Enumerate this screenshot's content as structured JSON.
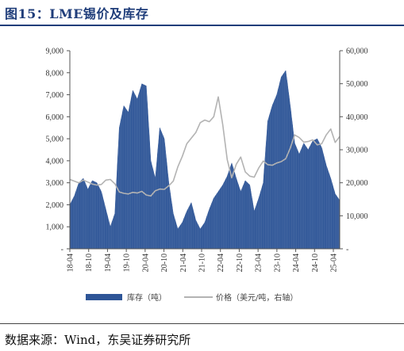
{
  "title": "图15：LME锡价及库存",
  "source": "数据来源：Wind，东吴证券研究所",
  "colors": {
    "bar": "#2e5597",
    "line": "#b3b3b3",
    "title": "#1f3d7a"
  },
  "chart_data": {
    "type": "bar+line",
    "x_ticks": [
      "18-04",
      "18-10",
      "19-04",
      "19-10",
      "20-04",
      "20-10",
      "21-04",
      "21-10",
      "22-04",
      "22-10",
      "23-04",
      "23-10",
      "24-04",
      "24-10",
      "25-04"
    ],
    "y_left": {
      "ticks": [
        "-",
        "1,000",
        "2,000",
        "3,000",
        "4,000",
        "5,000",
        "6,000",
        "7,000",
        "8,000",
        "9,000"
      ],
      "range": [
        0,
        9000
      ]
    },
    "y_right": {
      "ticks": [
        "-",
        "10,000",
        "20,000",
        "30,000",
        "40,000",
        "50,000",
        "60,000"
      ],
      "range": [
        0,
        60000
      ]
    },
    "series": [
      {
        "name": "库存（吨）",
        "type": "area",
        "axis": "left",
        "points": [
          [
            0,
            2000
          ],
          [
            1,
            2400
          ],
          [
            2,
            3000
          ],
          [
            3,
            3200
          ],
          [
            4,
            2700
          ],
          [
            5,
            3100
          ],
          [
            6,
            3000
          ],
          [
            7,
            2600
          ],
          [
            8,
            1800
          ],
          [
            9,
            1000
          ],
          [
            10,
            1600
          ],
          [
            11,
            5500
          ],
          [
            12,
            6500
          ],
          [
            13,
            6200
          ],
          [
            14,
            7200
          ],
          [
            15,
            6800
          ],
          [
            16,
            7500
          ],
          [
            17,
            7400
          ],
          [
            18,
            4000
          ],
          [
            19,
            3200
          ],
          [
            20,
            5500
          ],
          [
            21,
            5000
          ],
          [
            22,
            3000
          ],
          [
            23,
            1600
          ],
          [
            24,
            900
          ],
          [
            25,
            1200
          ],
          [
            26,
            1700
          ],
          [
            27,
            2100
          ],
          [
            28,
            1300
          ],
          [
            29,
            900
          ],
          [
            30,
            1200
          ],
          [
            31,
            1800
          ],
          [
            32,
            2300
          ],
          [
            33,
            2600
          ],
          [
            34,
            2900
          ],
          [
            35,
            3300
          ],
          [
            36,
            3900
          ],
          [
            37,
            3200
          ],
          [
            38,
            2600
          ],
          [
            39,
            3100
          ],
          [
            40,
            2900
          ],
          [
            41,
            1700
          ],
          [
            42,
            2300
          ],
          [
            43,
            3000
          ],
          [
            44,
            5800
          ],
          [
            45,
            6500
          ],
          [
            46,
            7000
          ],
          [
            47,
            7800
          ],
          [
            48,
            8100
          ],
          [
            49,
            6500
          ],
          [
            50,
            4800
          ],
          [
            51,
            4300
          ],
          [
            52,
            4800
          ],
          [
            53,
            4500
          ],
          [
            54,
            4900
          ],
          [
            55,
            5000
          ],
          [
            56,
            4600
          ],
          [
            57,
            3800
          ],
          [
            58,
            3200
          ],
          [
            59,
            2500
          ],
          [
            60,
            2200
          ]
        ]
      },
      {
        "name": "价格（美元/吨，右轴）",
        "type": "line",
        "axis": "right",
        "points": [
          [
            0,
            21000
          ],
          [
            1,
            20500
          ],
          [
            2,
            20000
          ],
          [
            3,
            20800
          ],
          [
            4,
            20200
          ],
          [
            5,
            19600
          ],
          [
            6,
            19300
          ],
          [
            7,
            19500
          ],
          [
            8,
            20800
          ],
          [
            9,
            21000
          ],
          [
            10,
            19700
          ],
          [
            11,
            17200
          ],
          [
            12,
            16800
          ],
          [
            13,
            16600
          ],
          [
            14,
            17100
          ],
          [
            15,
            16900
          ],
          [
            16,
            17400
          ],
          [
            17,
            16300
          ],
          [
            18,
            16000
          ],
          [
            19,
            17600
          ],
          [
            20,
            18100
          ],
          [
            21,
            18000
          ],
          [
            22,
            19100
          ],
          [
            23,
            20500
          ],
          [
            24,
            24800
          ],
          [
            25,
            28000
          ],
          [
            26,
            31800
          ],
          [
            27,
            33500
          ],
          [
            28,
            35200
          ],
          [
            29,
            38200
          ],
          [
            30,
            39000
          ],
          [
            31,
            38500
          ],
          [
            32,
            40000
          ],
          [
            33,
            46000
          ],
          [
            34,
            37500
          ],
          [
            35,
            27000
          ],
          [
            36,
            21500
          ],
          [
            37,
            25600
          ],
          [
            38,
            27800
          ],
          [
            39,
            23300
          ],
          [
            40,
            22000
          ],
          [
            41,
            21700
          ],
          [
            42,
            24500
          ],
          [
            43,
            26600
          ],
          [
            44,
            25500
          ],
          [
            45,
            25300
          ],
          [
            46,
            26000
          ],
          [
            47,
            26400
          ],
          [
            48,
            27300
          ],
          [
            49,
            30500
          ],
          [
            50,
            34500
          ],
          [
            51,
            33700
          ],
          [
            52,
            32300
          ],
          [
            53,
            32500
          ],
          [
            54,
            33000
          ],
          [
            55,
            31500
          ],
          [
            56,
            31800
          ],
          [
            57,
            34500
          ],
          [
            58,
            36300
          ],
          [
            59,
            32200
          ],
          [
            60,
            34000
          ]
        ]
      }
    ],
    "legend": {
      "placement": "bottom"
    }
  }
}
